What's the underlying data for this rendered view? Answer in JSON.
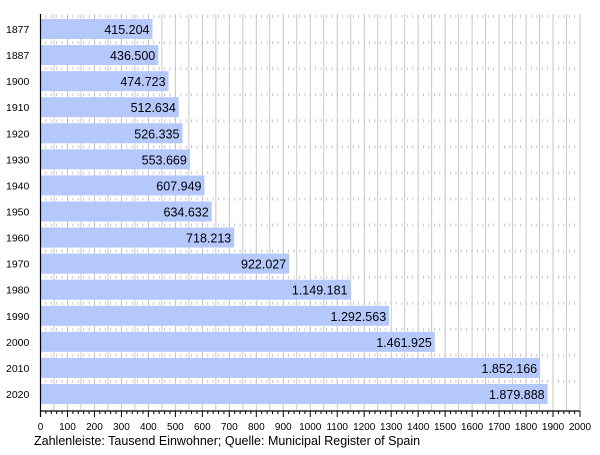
{
  "chart_data": {
    "type": "bar",
    "orientation": "horizontal",
    "categories": [
      "1877",
      "1887",
      "1900",
      "1910",
      "1920",
      "1930",
      "1940",
      "1950",
      "1960",
      "1970",
      "1980",
      "1990",
      "2000",
      "2010",
      "2020"
    ],
    "values": [
      415.204,
      436.5,
      474.723,
      512.634,
      526.335,
      553.669,
      607.949,
      634.632,
      718.213,
      922.027,
      1149.181,
      1292.563,
      1461.925,
      1852.166,
      1879.888
    ],
    "value_labels": [
      "415.204",
      "436.500",
      "474.723",
      "512.634",
      "526.335",
      "553.669",
      "607.949",
      "634.632",
      "718.213",
      "922.027",
      "1.149.181",
      "1.292.563",
      "1.461.925",
      "1.852.166",
      "1.879.888"
    ],
    "xlim": [
      0,
      2000
    ],
    "xticks": [
      "0",
      "100",
      "200",
      "300",
      "400",
      "500",
      "600",
      "700",
      "800",
      "900",
      "1000",
      "1100",
      "1200",
      "1300",
      "1400",
      "1500",
      "1600",
      "1700",
      "1800",
      "1900",
      "2000"
    ],
    "caption": "Zahlenleiste: Tausend Einwohner; Quelle: Municipal Register of Spain",
    "grid": true,
    "colors": {
      "bar": "#b4c8fc",
      "grid": "#c8c8c8"
    }
  }
}
